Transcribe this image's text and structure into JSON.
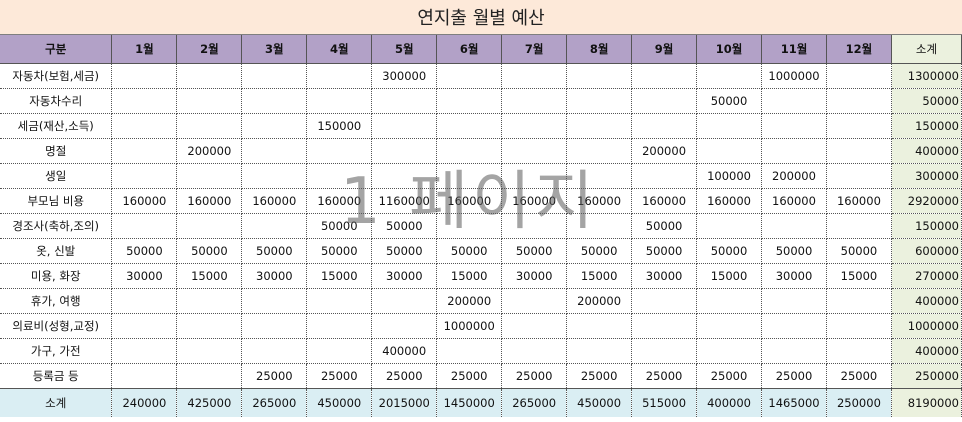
{
  "title": "연지출 월별 예산",
  "watermark": "1 페이지",
  "headers": [
    "구분",
    "1월",
    "2월",
    "3월",
    "4월",
    "5월",
    "6월",
    "7월",
    "8월",
    "9월",
    "10월",
    "11월",
    "12월",
    "소계"
  ],
  "rows": [
    {
      "label": "자동차(보험,세금)",
      "values": [
        "",
        "",
        "",
        "",
        "300000",
        "",
        "",
        "",
        "",
        "",
        "1000000",
        ""
      ],
      "total": "1300000"
    },
    {
      "label": "자동차수리",
      "values": [
        "",
        "",
        "",
        "",
        "",
        "",
        "",
        "",
        "",
        "50000",
        "",
        ""
      ],
      "total": "50000"
    },
    {
      "label": "세금(재산,소득)",
      "values": [
        "",
        "",
        "",
        "150000",
        "",
        "",
        "",
        "",
        "",
        "",
        "",
        ""
      ],
      "total": "150000"
    },
    {
      "label": "명절",
      "values": [
        "",
        "200000",
        "",
        "",
        "",
        "",
        "",
        "",
        "200000",
        "",
        "",
        ""
      ],
      "total": "400000"
    },
    {
      "label": "생일",
      "values": [
        "",
        "",
        "",
        "",
        "",
        "",
        "",
        "",
        "",
        "100000",
        "200000",
        ""
      ],
      "total": "300000"
    },
    {
      "label": "부모님 비용",
      "values": [
        "160000",
        "160000",
        "160000",
        "160000",
        "1160000",
        "160000",
        "160000",
        "160000",
        "160000",
        "160000",
        "160000",
        "160000"
      ],
      "total": "2920000"
    },
    {
      "label": "경조사(축하,조의)",
      "values": [
        "",
        "",
        "",
        "50000",
        "50000",
        "",
        "",
        "",
        "50000",
        "",
        "",
        ""
      ],
      "total": "150000"
    },
    {
      "label": "옷, 신발",
      "values": [
        "50000",
        "50000",
        "50000",
        "50000",
        "50000",
        "50000",
        "50000",
        "50000",
        "50000",
        "50000",
        "50000",
        "50000"
      ],
      "total": "600000"
    },
    {
      "label": "미용, 화장",
      "values": [
        "30000",
        "15000",
        "30000",
        "15000",
        "30000",
        "15000",
        "30000",
        "15000",
        "30000",
        "15000",
        "30000",
        "15000"
      ],
      "total": "270000"
    },
    {
      "label": "휴가, 여행",
      "values": [
        "",
        "",
        "",
        "",
        "",
        "200000",
        "",
        "200000",
        "",
        "",
        "",
        ""
      ],
      "total": "400000"
    },
    {
      "label": "의료비(성형,교정)",
      "values": [
        "",
        "",
        "",
        "",
        "",
        "1000000",
        "",
        "",
        "",
        "",
        "",
        ""
      ],
      "total": "1000000"
    },
    {
      "label": "가구, 가전",
      "values": [
        "",
        "",
        "",
        "",
        "400000",
        "",
        "",
        "",
        "",
        "",
        "",
        ""
      ],
      "total": "400000"
    },
    {
      "label": "등록금 등",
      "values": [
        "",
        "",
        "25000",
        "25000",
        "25000",
        "25000",
        "25000",
        "25000",
        "25000",
        "25000",
        "25000",
        "25000"
      ],
      "total": "250000"
    }
  ],
  "summary": {
    "label": "소계",
    "values": [
      "240000",
      "425000",
      "265000",
      "450000",
      "2015000",
      "1450000",
      "265000",
      "450000",
      "515000",
      "400000",
      "1465000",
      "250000"
    ],
    "total": "8190000"
  }
}
